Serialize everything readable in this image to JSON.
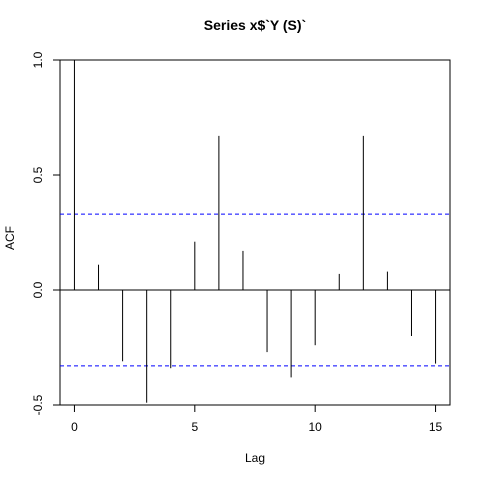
{
  "chart_data": {
    "type": "bar",
    "title": "Series  x$`Y (S)`",
    "xlabel": "Lag",
    "ylabel": "ACF",
    "xlim": [
      -0.6,
      15.6
    ],
    "ylim": [
      -0.5,
      1.0
    ],
    "x_ticks": [
      0,
      5,
      10,
      15
    ],
    "x_tick_labels": [
      "0",
      "5",
      "10",
      "15"
    ],
    "y_ticks": [
      -0.5,
      0.0,
      0.5,
      1.0
    ],
    "y_tick_labels": [
      "-0.5",
      "0.0",
      "0.5",
      "1.0"
    ],
    "lags": [
      0,
      1,
      2,
      3,
      4,
      5,
      6,
      7,
      8,
      9,
      10,
      11,
      12,
      13,
      14,
      15
    ],
    "values": [
      1.0,
      0.11,
      -0.31,
      -0.49,
      -0.34,
      0.21,
      0.67,
      0.17,
      -0.27,
      -0.38,
      -0.24,
      0.07,
      0.67,
      0.08,
      -0.2,
      -0.32
    ],
    "confidence_bound": 0.33,
    "colors": {
      "bars": "#000000",
      "bounds": "#0000ff",
      "zero_line": "#000000"
    },
    "grid": false,
    "legend": "none"
  }
}
